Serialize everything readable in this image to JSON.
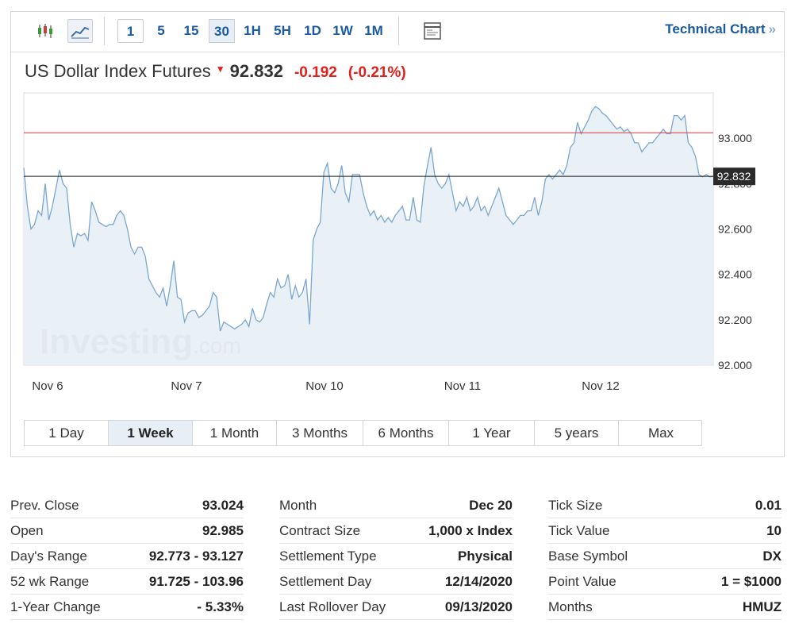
{
  "toolbar": {
    "intervals": [
      "1",
      "5",
      "15",
      "30",
      "1H",
      "5H",
      "1D",
      "1W",
      "1M"
    ],
    "active_interval": "30",
    "link": "Technical Chart",
    "link_arrow": "»"
  },
  "instrument": {
    "name": "US Dollar Index Futures",
    "price": "92.832",
    "change": "-0.192",
    "change_pct": "(-0.21%)"
  },
  "colors": {
    "line": "#7aa7d1",
    "area": "#e6eef5",
    "prev_close_line": "#d9343a",
    "last_price_line": "#1b1b1b",
    "negative": "#e0201c",
    "link": "#1a5aa0"
  },
  "watermark": {
    "brand": "Investing",
    "suffix": ".com"
  },
  "chart_data": {
    "type": "area",
    "x_tick_labels": [
      "Nov 6",
      "Nov 7",
      "Nov 10",
      "Nov 11",
      "Nov 12"
    ],
    "y_ticks": [
      "93.000",
      "92.800",
      "92.600",
      "92.400",
      "92.200",
      "92.000"
    ],
    "ylim": [
      92.0,
      93.2
    ],
    "prev_close": 93.024,
    "last_price_label": "92.832",
    "last_price": 92.832,
    "grid": false,
    "series": [
      {
        "values": [
          92.87,
          92.7,
          92.6,
          92.62,
          92.68,
          92.66,
          92.8,
          92.64,
          92.7,
          92.78,
          92.86,
          92.8,
          92.78,
          92.62,
          92.52,
          92.58,
          92.57,
          92.58,
          92.55,
          92.72,
          92.68,
          92.63,
          92.62,
          92.61,
          92.62,
          92.62,
          92.66,
          92.68,
          92.66,
          92.6,
          92.52,
          92.49,
          92.52,
          92.52,
          92.48,
          92.38,
          92.35,
          92.32,
          92.3,
          92.34,
          92.26,
          92.35,
          92.46,
          92.3,
          92.29,
          92.19,
          92.23,
          92.24,
          92.24,
          92.21,
          92.22,
          92.24,
          92.26,
          92.32,
          92.3,
          92.15,
          92.19,
          92.18,
          92.17,
          92.16,
          92.17,
          92.18,
          92.2,
          92.17,
          92.25,
          92.2,
          92.19,
          92.21,
          92.27,
          92.32,
          92.3,
          92.38,
          92.34,
          92.35,
          92.4,
          92.29,
          92.35,
          92.3,
          92.32,
          92.38,
          92.18,
          92.55,
          92.6,
          92.63,
          92.85,
          92.89,
          92.78,
          92.76,
          92.8,
          92.88,
          92.76,
          92.72,
          92.84,
          92.84,
          92.84,
          92.76,
          92.7,
          92.66,
          92.68,
          92.64,
          92.66,
          92.63,
          92.65,
          92.63,
          92.66,
          92.68,
          92.7,
          92.64,
          92.64,
          92.74,
          92.64,
          92.63,
          92.79,
          92.88,
          92.96,
          92.84,
          92.8,
          92.78,
          92.8,
          92.84,
          92.76,
          92.68,
          92.72,
          92.7,
          92.74,
          92.68,
          92.7,
          92.74,
          92.68,
          92.7,
          92.66,
          92.7,
          92.74,
          92.78,
          92.72,
          92.66,
          92.64,
          92.62,
          92.64,
          92.66,
          92.66,
          92.68,
          92.68,
          92.74,
          92.66,
          92.72,
          92.82,
          92.84,
          92.82,
          92.84,
          92.86,
          92.84,
          92.88,
          92.96,
          92.98,
          93.07,
          93.02,
          93.05,
          93.08,
          93.12,
          93.14,
          93.13,
          93.11,
          93.1,
          93.08,
          93.06,
          93.04,
          93.05,
          93.03,
          93.04,
          93.02,
          92.98,
          92.98,
          92.94,
          92.96,
          92.98,
          92.98,
          93.0,
          93.02,
          93.04,
          93.02,
          93.02,
          93.1,
          93.1,
          93.08,
          93.1,
          92.98,
          92.96,
          92.92,
          92.84,
          92.83,
          92.84,
          92.83,
          92.832
        ]
      }
    ]
  },
  "ranges": [
    "1 Day",
    "1 Week",
    "1 Month",
    "3 Months",
    "6 Months",
    "1 Year",
    "5 years",
    "Max"
  ],
  "active_range": "1 Week",
  "stats": {
    "col1": [
      {
        "label": "Prev. Close",
        "value": "93.024"
      },
      {
        "label": "Open",
        "value": "92.985"
      },
      {
        "label": "Day's Range",
        "value": "92.773 - 93.127"
      },
      {
        "label": "52 wk Range",
        "value": "91.725 - 103.96"
      },
      {
        "label": "1-Year Change",
        "value": "- 5.33%"
      }
    ],
    "col2": [
      {
        "label": "Month",
        "value": "Dec 20"
      },
      {
        "label": "Contract Size",
        "value": "1,000 x Index"
      },
      {
        "label": "Settlement Type",
        "value": "Physical"
      },
      {
        "label": "Settlement Day",
        "value": "12/14/2020"
      },
      {
        "label": "Last Rollover Day",
        "value": "09/13/2020"
      }
    ],
    "col3": [
      {
        "label": "Tick Size",
        "value": "0.01"
      },
      {
        "label": "Tick Value",
        "value": "10"
      },
      {
        "label": "Base Symbol",
        "value": "DX"
      },
      {
        "label": "Point Value",
        "value": "1 = $1000"
      },
      {
        "label": "Months",
        "value": "HMUZ"
      }
    ]
  }
}
